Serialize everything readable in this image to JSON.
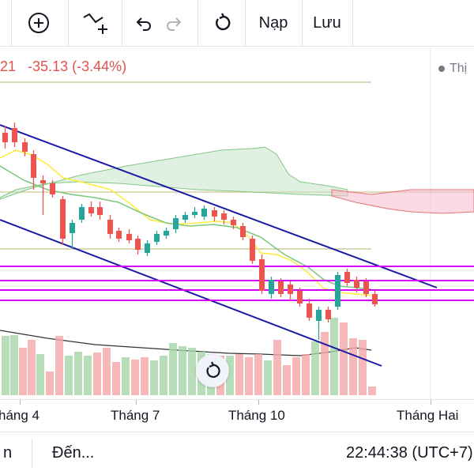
{
  "toolbar": {
    "load_label": "Nạp",
    "save_label": "Lưu"
  },
  "quote": {
    "partial_value": "21",
    "change": "-35.13",
    "change_pct": "(-3.44%)"
  },
  "legend": {
    "partial_label": "Thị"
  },
  "time_axis": {
    "labels": [
      "háng 4",
      "Tháng 7",
      "Tháng 10",
      "Tháng Hai"
    ]
  },
  "bottom_bar": {
    "left_partial": "n",
    "date_range_label": "Đến...",
    "clock": "22:44:38 (UTC+7)"
  },
  "colors": {
    "up": "#26a69a",
    "down": "#ef5350",
    "channel": "#1a1aa6",
    "hline": "#d500f9"
  },
  "icons": [
    "plus-circle-icon",
    "indicator-icon",
    "undo-icon",
    "redo-icon",
    "refresh-icon",
    "reset-chart-icon"
  ]
}
